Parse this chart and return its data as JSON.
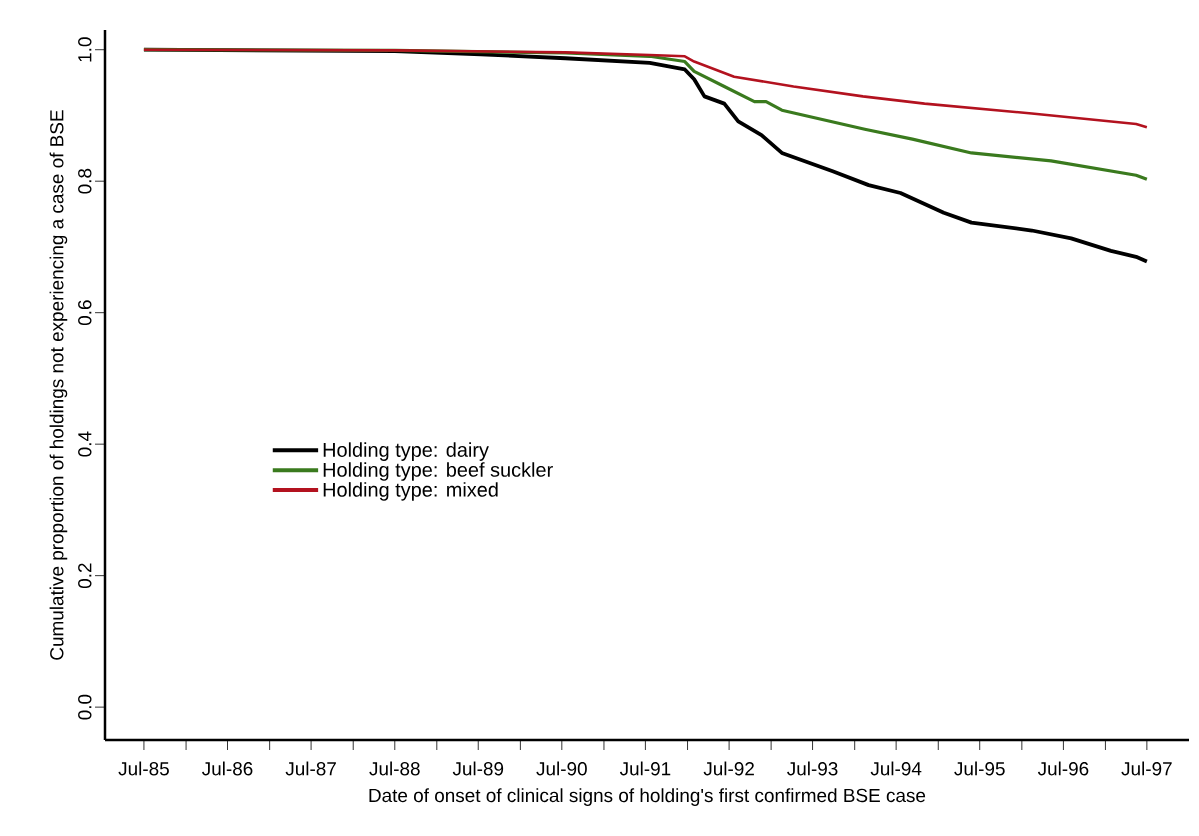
{
  "chart_data": {
    "type": "line",
    "xlabel": "Date of onset of clinical signs of holding's first confirmed BSE case",
    "ylabel": "Cumulative proportion of holdings not experiencing a case of BSE",
    "xlim": [
      "1985-01-12",
      "1998-01-01"
    ],
    "ylim": [
      -0.05,
      1.03
    ],
    "xticks": [
      {
        "value": "1985-07",
        "label": "Jul-85"
      },
      {
        "value": "1986-01",
        "label": null
      },
      {
        "value": "1986-07",
        "label": "Jul-86"
      },
      {
        "value": "1987-01",
        "label": null
      },
      {
        "value": "1987-07",
        "label": "Jul-87"
      },
      {
        "value": "1988-01",
        "label": null
      },
      {
        "value": "1988-07",
        "label": "Jul-88"
      },
      {
        "value": "1989-01",
        "label": null
      },
      {
        "value": "1989-07",
        "label": "Jul-89"
      },
      {
        "value": "1990-01",
        "label": null
      },
      {
        "value": "1990-07",
        "label": "Jul-90"
      },
      {
        "value": "1991-01",
        "label": null
      },
      {
        "value": "1991-07",
        "label": "Jul-91"
      },
      {
        "value": "1992-01",
        "label": null
      },
      {
        "value": "1992-07",
        "label": "Jul-92"
      },
      {
        "value": "1993-01",
        "label": null
      },
      {
        "value": "1993-07",
        "label": "Jul-93"
      },
      {
        "value": "1994-01",
        "label": null
      },
      {
        "value": "1994-07",
        "label": "Jul-94"
      },
      {
        "value": "1995-01",
        "label": null
      },
      {
        "value": "1995-07",
        "label": "Jul-95"
      },
      {
        "value": "1996-01",
        "label": null
      },
      {
        "value": "1996-07",
        "label": "Jul-96"
      },
      {
        "value": "1997-01",
        "label": null
      },
      {
        "value": "1997-07",
        "label": "Jul-97"
      }
    ],
    "yticks": [
      {
        "value": 0,
        "label": "0.0"
      },
      {
        "value": 0.2,
        "label": "0.2"
      },
      {
        "value": 0.4,
        "label": "0.4"
      },
      {
        "value": 0.6,
        "label": "0.6"
      },
      {
        "value": 0.8,
        "label": "0.8"
      },
      {
        "value": 1,
        "label": "1.0"
      }
    ],
    "legend": "left",
    "grid": false,
    "marker": "none",
    "line_style": "solid",
    "series": [
      {
        "name": "Holding type: dairy",
        "color": "#000000",
        "x": [
          "1985-07-01",
          "1988-07-01",
          "1989-07-12",
          "1990-07-16",
          "1991-07-20",
          "1991-12-20",
          "1992-01-30",
          "1992-03-15",
          "1992-06-10",
          "1992-08-10",
          "1992-11-20",
          "1993-02-17",
          "1993-09-27",
          "1994-03-03",
          "1994-07-20",
          "1995-01-25",
          "1995-05-26",
          "1996-02-14",
          "1996-08-04",
          "1997-01-25",
          "1997-05-15",
          "1997-07-01"
        ],
        "values": [
          1.0,
          0.998,
          0.993,
          0.987,
          0.98,
          0.97,
          0.955,
          0.929,
          0.918,
          0.891,
          0.87,
          0.843,
          0.815,
          0.794,
          0.782,
          0.752,
          0.737,
          0.725,
          0.713,
          0.694,
          0.685,
          0.678
        ]
      },
      {
        "name": "Holding type: beef suckler",
        "color": "#3a7a1e",
        "x": [
          "1985-07-01",
          "1988-07-01",
          "1990-07-16",
          "1991-07-20",
          "1991-12-20",
          "1992-01-30",
          "1992-06-10",
          "1992-10-20",
          "1992-12-10",
          "1993-02-17",
          "1994-02-14",
          "1994-09-10",
          "1995-05-26",
          "1996-05-08",
          "1997-05-15",
          "1997-07-01"
        ],
        "values": [
          1.0,
          0.999,
          0.995,
          0.99,
          0.982,
          0.967,
          0.944,
          0.921,
          0.921,
          0.908,
          0.879,
          0.864,
          0.843,
          0.831,
          0.809,
          0.803
        ]
      },
      {
        "name": "Holding type: mixed",
        "color": "#b3121f",
        "x": [
          "1985-07-01",
          "1988-07-01",
          "1990-07-16",
          "1991-07-20",
          "1991-12-20",
          "1992-01-30",
          "1992-07-23",
          "1993-04-09",
          "1994-02-06",
          "1994-11-02",
          "1996-02-14",
          "1997-05-15",
          "1997-07-01"
        ],
        "values": [
          1.0,
          0.999,
          0.996,
          0.992,
          0.99,
          0.982,
          0.959,
          0.944,
          0.929,
          0.918,
          0.903,
          0.887,
          0.882
        ]
      }
    ]
  }
}
